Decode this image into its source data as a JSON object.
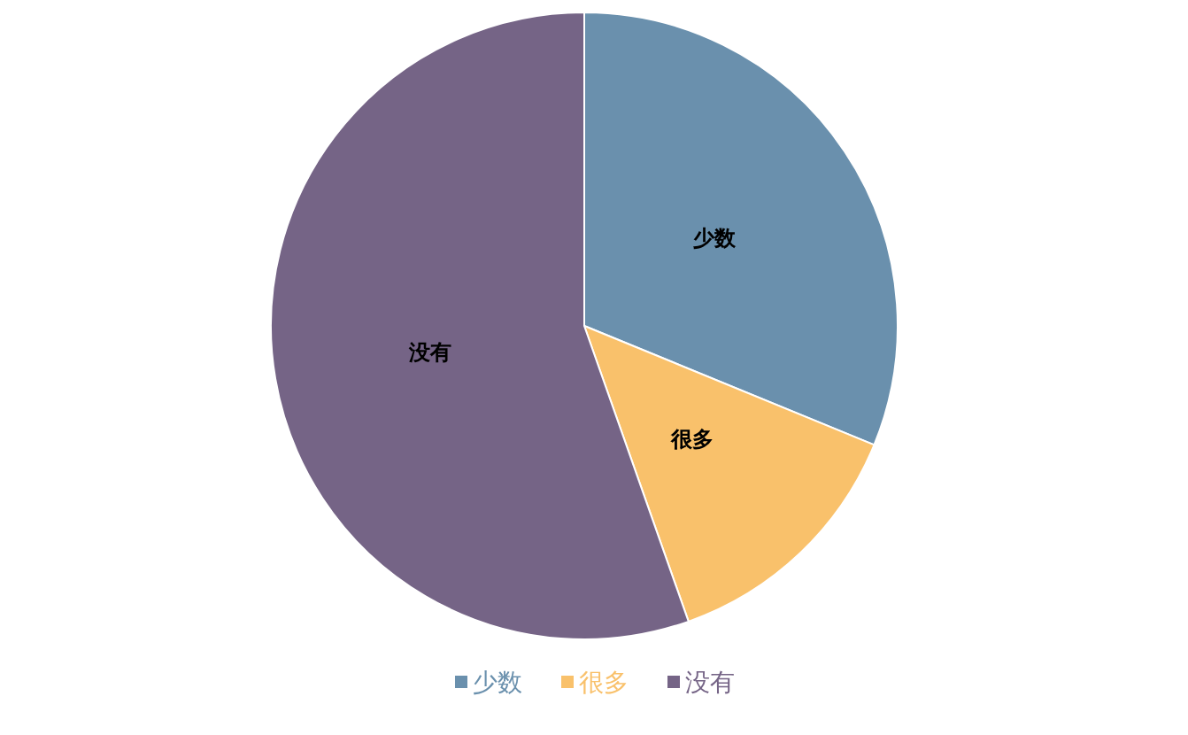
{
  "chart_data": {
    "type": "pie",
    "categories": [
      "少数",
      "很多",
      "没有"
    ],
    "values": [
      31.2,
      13.4,
      55.4
    ],
    "colors": [
      "#6a90ad",
      "#f9c16b",
      "#756486"
    ],
    "legend": "bottom"
  }
}
